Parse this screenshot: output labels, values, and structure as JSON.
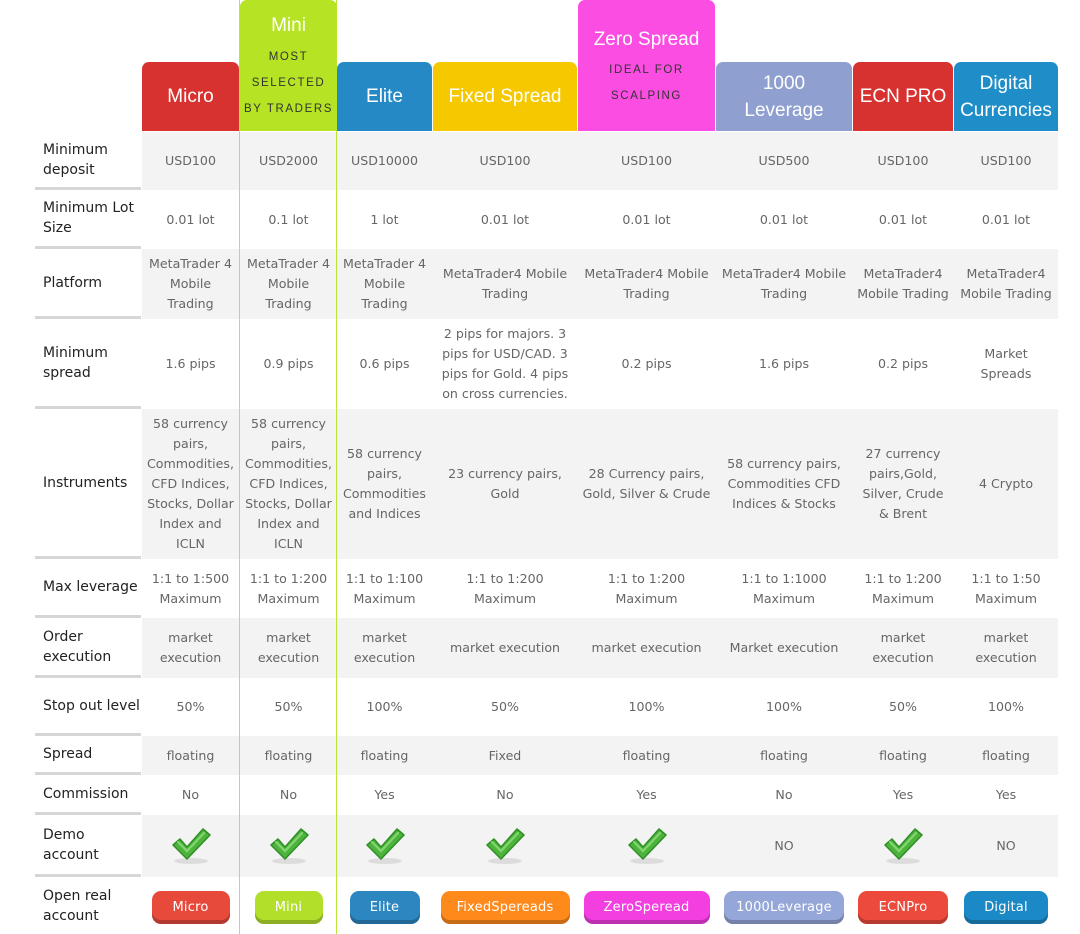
{
  "colors": {
    "micro": "#d7322f",
    "mini": "#b6e424",
    "elite": "#2489c4",
    "fixed": "#f5c800",
    "zero": "#fb4de2",
    "leverage": "#8f9fd0",
    "ecn": "#d7322f",
    "digital": "#1f8ec8",
    "btn_micro": "#e74a3b",
    "btn_mini": "#b2e02a",
    "btn_elite": "#2c86c0",
    "btn_fixed": "#ff8a1c",
    "btn_zero": "#f33ee0",
    "btn_leverage": "#95a6d8",
    "btn_ecn": "#ec4a3c",
    "btn_digital": "#1b89c6"
  },
  "columns": [
    {
      "name": "Micro",
      "name2": "",
      "sub1": "",
      "sub2": "",
      "sub3": "",
      "button": "Micro"
    },
    {
      "name": "Mini",
      "name2": "",
      "sub1": "MOST",
      "sub2": "SELECTED",
      "sub3": "BY TRADERS",
      "button": "Mini"
    },
    {
      "name": "Elite",
      "name2": "",
      "sub1": "",
      "sub2": "",
      "sub3": "",
      "button": "Elite"
    },
    {
      "name": "Fixed Spread",
      "name2": "",
      "sub1": "",
      "sub2": "",
      "sub3": "",
      "button": "FixedSpereads"
    },
    {
      "name": "Zero Spread",
      "name2": "",
      "sub1": "IDEAL FOR",
      "sub2": "SCALPING",
      "sub3": "",
      "button": "ZeroSperead"
    },
    {
      "name": "1000",
      "name2": "Leverage",
      "sub1": "",
      "sub2": "",
      "sub3": "",
      "button": "1000Leverage"
    },
    {
      "name": "ECN PRO",
      "name2": "",
      "sub1": "",
      "sub2": "",
      "sub3": "",
      "button": "ECNPro"
    },
    {
      "name": "Digital",
      "name2": "Currencies",
      "sub1": "",
      "sub2": "",
      "sub3": "",
      "button": "Digital"
    }
  ],
  "rows": [
    {
      "label": "Minimum deposit",
      "cells": [
        "USD100",
        "USD2000",
        "USD10000",
        "USD100",
        "USD100",
        "USD500",
        "USD100",
        "USD100"
      ]
    },
    {
      "label": "Minimum Lot Size",
      "cells": [
        "0.01 lot",
        "0.1 lot",
        "1 lot",
        "0.01 lot",
        "0.01 lot",
        "0.01 lot",
        "0.01 lot",
        "0.01 lot"
      ]
    },
    {
      "label": "Platform",
      "cells": [
        "MetaTrader 4 Mobile Trading",
        "MetaTrader 4 Mobile Trading",
        "MetaTrader 4 Mobile Trading",
        "MetaTrader4 Mobile Trading",
        "MetaTrader4 Mobile Trading",
        "MetaTrader4 Mobile Trading",
        "MetaTrader4 Mobile Trading",
        "MetaTrader4 Mobile Trading"
      ]
    },
    {
      "label": "Minimum spread",
      "cells": [
        "1.6 pips",
        "0.9 pips",
        "0.6 pips",
        "2 pips for majors. 3 pips for USD/CAD. 3 pips for Gold. 4 pips on cross currencies.",
        "0.2 pips",
        "1.6 pips",
        "0.2 pips",
        "Market Spreads"
      ]
    },
    {
      "label": "Instruments",
      "cells": [
        "58 currency pairs, Commodities, CFD Indices, Stocks, Dollar Index and ICLN",
        "58 currency pairs, Commodities, CFD Indices, Stocks, Dollar Index and ICLN",
        "58 currency pairs, Commodities and Indices",
        "23 currency pairs, Gold",
        "28 Currency pairs, Gold, Silver & Crude",
        "58 currency pairs, Commodities CFD Indices & Stocks",
        "27 currency pairs,Gold, Silver, Crude & Brent",
        "4 Crypto"
      ]
    },
    {
      "label": "Max leverage",
      "cells": [
        "1:1 to 1:500 Maximum",
        "1:1 to 1:200 Maximum",
        "1:1 to 1:100 Maximum",
        "1:1 to 1:200 Maximum",
        "1:1 to 1:200 Maximum",
        "1:1 to 1:1000 Maximum",
        "1:1 to 1:200 Maximum",
        "1:1 to 1:50 Maximum"
      ]
    },
    {
      "label": "Order execution",
      "cells": [
        "market execution",
        "market execution",
        "market execution",
        "market execution",
        "market execution",
        "Market execution",
        "market execution",
        "market execution"
      ]
    },
    {
      "label": "Stop out level",
      "cells": [
        "50%",
        "50%",
        "100%",
        "50%",
        "100%",
        "100%",
        "50%",
        "100%"
      ]
    },
    {
      "label": "Spread",
      "cells": [
        "floating",
        "floating",
        "floating",
        "Fixed",
        "floating",
        "floating",
        "floating",
        "floating"
      ]
    },
    {
      "label": "Commission",
      "cells": [
        "No",
        "No",
        "Yes",
        "No",
        "Yes",
        "No",
        "Yes",
        "Yes"
      ]
    },
    {
      "label": "Demo account",
      "cells": [
        "check",
        "check",
        "check",
        "check",
        "check",
        "NO",
        "check",
        "NO"
      ]
    },
    {
      "label": "Open real account",
      "cells": []
    }
  ],
  "icons": {
    "check": "checkmark-icon"
  }
}
